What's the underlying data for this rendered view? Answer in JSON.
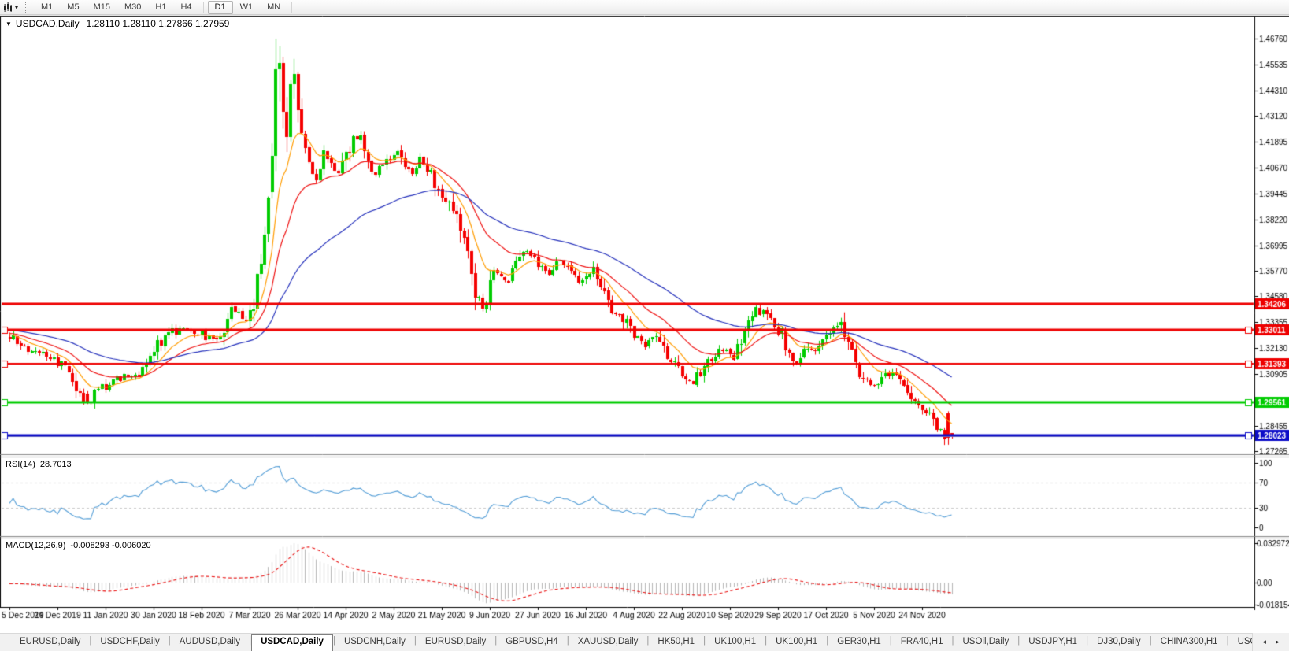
{
  "icons": {
    "tool_caret": "▾",
    "title_caret": "▼",
    "scroll_left": "◂",
    "scroll_right": "▸"
  },
  "toolbar": {
    "timeframes": [
      "M1",
      "M5",
      "M15",
      "M30",
      "H1",
      "H4",
      "D1",
      "W1",
      "MN"
    ],
    "group_break_after": "H4",
    "active_timeframe": "D1"
  },
  "chart": {
    "title_symbol": "USDCAD,Daily",
    "quote": "1.28110 1.28110 1.27866 1.27959",
    "price_axis": {
      "ticks": [
        "1.46760",
        "1.45535",
        "1.44310",
        "1.43120",
        "1.41895",
        "1.40670",
        "1.39445",
        "1.38220",
        "1.36995",
        "1.35770",
        "1.34580",
        "1.33355",
        "1.32130",
        "1.30905",
        "1.28455",
        "1.27265"
      ]
    },
    "hlines": [
      {
        "label": "1.34206",
        "price": 1.34206,
        "color": "#ee0000",
        "width": 3,
        "handle": false
      },
      {
        "label": "1.33011",
        "price": 1.33011,
        "color": "#ee0000",
        "width": 3,
        "handle": true
      },
      {
        "label": "1.31393",
        "price": 1.31393,
        "color": "#ee0000",
        "width": 2,
        "handle": true
      },
      {
        "label": "1.29561",
        "price": 1.29561,
        "color": "#00cc00",
        "width": 3,
        "handle": true
      },
      {
        "label": "1.28023",
        "price": 1.28023,
        "color": "#0d0dc8",
        "width": 3,
        "handle": true
      }
    ]
  },
  "chart_data": {
    "type": "candlestick",
    "symbol": "USDCAD",
    "timeframe": "Daily",
    "last_bar": {
      "open": 1.2811,
      "high": 1.2811,
      "low": 1.27866,
      "close": 1.27959
    },
    "bars_total": 256,
    "bull_color": "#00cc00",
    "bear_color": "#f40000",
    "bid_price": 1.27959,
    "bid_line_color": "#b8b8b8",
    "visible_high": 1.4676,
    "visible_low": 1.27117,
    "moving_averages": [
      {
        "name": "ma-fast",
        "period": 10,
        "color": "#ff9c00"
      },
      {
        "name": "ma-mid",
        "period": 22,
        "color": "#ee1111"
      },
      {
        "name": "ma-slow",
        "period": 55,
        "color": "#2430bb"
      }
    ],
    "date_ticks": [
      "5 Dec 2019",
      "24 Dec 2019",
      "11 Jan 2020",
      "30 Jan 2020",
      "18 Feb 2020",
      "7 Mar 2020",
      "26 Mar 2020",
      "14 Apr 2020",
      "2 May 2020",
      "21 May 2020",
      "9 Jun 2020",
      "27 Jun 2020",
      "16 Jul 2020",
      "4 Aug 2020",
      "22 Aug 2020",
      "10 Sep 2020",
      "29 Sep 2020",
      "17 Oct 2020",
      "5 Nov 2020",
      "24 Nov 2020"
    ],
    "price_anchors": [
      [
        0,
        1.327
      ],
      [
        4,
        1.3215
      ],
      [
        8,
        1.319
      ],
      [
        12,
        1.3155
      ],
      [
        16,
        1.31
      ],
      [
        19,
        1.298
      ],
      [
        21,
        1.2958
      ],
      [
        24,
        1.301
      ],
      [
        28,
        1.3065
      ],
      [
        32,
        1.308
      ],
      [
        36,
        1.3105
      ],
      [
        40,
        1.323
      ],
      [
        44,
        1.329
      ],
      [
        48,
        1.33
      ],
      [
        52,
        1.3285
      ],
      [
        55,
        1.3245
      ],
      [
        58,
        1.332
      ],
      [
        60,
        1.3405
      ],
      [
        62,
        1.338
      ],
      [
        64,
        1.334
      ],
      [
        66,
        1.342
      ],
      [
        68,
        1.362
      ],
      [
        70,
        1.39
      ],
      [
        71,
        1.405
      ],
      [
        72,
        1.453
      ],
      [
        73,
        1.456
      ],
      [
        74,
        1.433
      ],
      [
        75,
        1.421
      ],
      [
        76,
        1.446
      ],
      [
        77,
        1.451
      ],
      [
        78,
        1.434
      ],
      [
        79,
        1.418
      ],
      [
        81,
        1.406
      ],
      [
        83,
        1.402
      ],
      [
        85,
        1.415
      ],
      [
        87,
        1.409
      ],
      [
        89,
        1.402
      ],
      [
        91,
        1.414
      ],
      [
        93,
        1.419
      ],
      [
        95,
        1.423
      ],
      [
        97,
        1.41
      ],
      [
        99,
        1.403
      ],
      [
        101,
        1.409
      ],
      [
        103,
        1.411
      ],
      [
        105,
        1.413
      ],
      [
        107,
        1.407
      ],
      [
        109,
        1.402
      ],
      [
        111,
        1.41
      ],
      [
        113,
        1.408
      ],
      [
        115,
        1.399
      ],
      [
        117,
        1.395
      ],
      [
        119,
        1.39
      ],
      [
        121,
        1.382
      ],
      [
        123,
        1.37
      ],
      [
        125,
        1.356
      ],
      [
        127,
        1.342
      ],
      [
        128,
        1.339
      ],
      [
        129,
        1.344
      ],
      [
        130,
        1.353
      ],
      [
        132,
        1.357
      ],
      [
        134,
        1.352
      ],
      [
        136,
        1.356
      ],
      [
        138,
        1.365
      ],
      [
        140,
        1.368
      ],
      [
        142,
        1.362
      ],
      [
        144,
        1.359
      ],
      [
        146,
        1.357
      ],
      [
        148,
        1.361
      ],
      [
        150,
        1.362
      ],
      [
        152,
        1.358
      ],
      [
        154,
        1.353
      ],
      [
        156,
        1.356
      ],
      [
        158,
        1.358
      ],
      [
        160,
        1.35
      ],
      [
        162,
        1.342
      ],
      [
        164,
        1.339
      ],
      [
        166,
        1.336
      ],
      [
        168,
        1.33
      ],
      [
        170,
        1.326
      ],
      [
        172,
        1.323
      ],
      [
        174,
        1.327
      ],
      [
        176,
        1.323
      ],
      [
        178,
        1.318
      ],
      [
        180,
        1.314
      ],
      [
        182,
        1.311
      ],
      [
        184,
        1.304
      ],
      [
        186,
        1.307
      ],
      [
        188,
        1.314
      ],
      [
        190,
        1.317
      ],
      [
        192,
        1.319
      ],
      [
        194,
        1.321
      ],
      [
        196,
        1.317
      ],
      [
        198,
        1.323
      ],
      [
        200,
        1.337
      ],
      [
        202,
        1.341
      ],
      [
        205,
        1.335
      ],
      [
        207,
        1.331
      ],
      [
        209,
        1.327
      ],
      [
        211,
        1.318
      ],
      [
        213,
        1.313
      ],
      [
        215,
        1.319
      ],
      [
        217,
        1.321
      ],
      [
        219,
        1.322
      ],
      [
        221,
        1.327
      ],
      [
        223,
        1.332
      ],
      [
        225,
        1.331
      ],
      [
        227,
        1.322
      ],
      [
        229,
        1.313
      ],
      [
        231,
        1.306
      ],
      [
        233,
        1.303
      ],
      [
        235,
        1.306
      ],
      [
        237,
        1.31
      ],
      [
        239,
        1.308
      ],
      [
        241,
        1.305
      ],
      [
        243,
        1.3
      ],
      [
        245,
        1.296
      ],
      [
        247,
        1.293
      ],
      [
        249,
        1.2905
      ],
      [
        251,
        1.286
      ],
      [
        253,
        1.279
      ],
      [
        254,
        1.2785
      ],
      [
        255,
        1.27959
      ]
    ],
    "overrides": {
      "21": [
        1.3,
        1.301,
        1.2949,
        1.2958
      ],
      "71": [
        1.395,
        1.418,
        1.392,
        1.412
      ],
      "72": [
        1.412,
        1.4676,
        1.405,
        1.453
      ],
      "73": [
        1.453,
        1.464,
        1.438,
        1.456
      ],
      "74": [
        1.456,
        1.459,
        1.425,
        1.433
      ],
      "75": [
        1.433,
        1.44,
        1.414,
        1.421
      ],
      "76": [
        1.421,
        1.448,
        1.419,
        1.446
      ],
      "77": [
        1.446,
        1.458,
        1.439,
        1.451
      ],
      "78": [
        1.451,
        1.452,
        1.428,
        1.434
      ],
      "254": [
        1.2905,
        1.2915,
        1.2757,
        1.279
      ],
      "255": [
        1.2811,
        1.2811,
        1.27866,
        1.27959
      ]
    }
  },
  "rsi": {
    "label": "RSI(14)",
    "value": "28.7013",
    "period": 14,
    "levels": [
      "100",
      "70",
      "30",
      "0"
    ],
    "dashed_levels": [
      70,
      30
    ],
    "line_color": "#539dd6"
  },
  "macd": {
    "label": "MACD(12,26,9)",
    "value": "-0.008293 -0.006020",
    "fast": 12,
    "slow": 26,
    "signal": 9,
    "axis_labels": [
      "0.032972",
      "0.00",
      "-0.018154"
    ],
    "max": 0.032972,
    "min": -0.018154,
    "hist_color": "#b6b6b6",
    "signal_color": "#e81010"
  },
  "tabs": {
    "items": [
      "EURUSD,Daily",
      "USDCHF,Daily",
      "AUDUSD,Daily",
      "USDCAD,Daily",
      "USDCNH,Daily",
      "EURUSD,Daily",
      "GBPUSD,H4",
      "XAUUSD,Daily",
      "HK50,H1",
      "UK100,H1",
      "UK100,H1",
      "GER30,H1",
      "FRA40,H1",
      "USOil,Daily",
      "USDJPY,H1",
      "DJ30,Daily",
      "CHINA300,H1",
      "USOil,H"
    ],
    "active_index": 3
  }
}
